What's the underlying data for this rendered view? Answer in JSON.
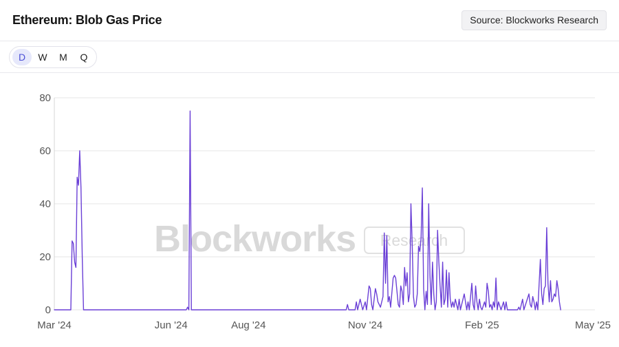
{
  "header": {
    "title": "Ethereum: Blob Gas Price",
    "source_label": "Source: Blockworks Research"
  },
  "range_selector": {
    "options": [
      "D",
      "W",
      "M",
      "Q"
    ],
    "active": "D"
  },
  "watermark": {
    "brand": "Blockworks",
    "sub": "Research"
  },
  "colors": {
    "line": "#6a3fd6",
    "grid": "#e6e6e6",
    "active_tab_bg": "#e6e8fb",
    "active_tab_text": "#4b4fd6"
  },
  "chart_data": {
    "type": "line",
    "title": "Ethereum: Blob Gas Price",
    "xlabel": "",
    "ylabel": "",
    "ylim": [
      0,
      80
    ],
    "yticks": [
      0,
      20,
      40,
      60,
      80
    ],
    "xlim": [
      "2024-03-01",
      "2025-05-01"
    ],
    "xticks": [
      {
        "date": "2024-03-01",
        "label": "Mar '24"
      },
      {
        "date": "2024-06-01",
        "label": "Jun '24"
      },
      {
        "date": "2024-08-01",
        "label": "Aug '24"
      },
      {
        "date": "2024-11-01",
        "label": "Nov '24"
      },
      {
        "date": "2025-02-01",
        "label": "Feb '25"
      },
      {
        "date": "2025-05-01",
        "label": "May '25"
      }
    ],
    "grid": true,
    "legend": "none",
    "series": [
      {
        "points": [
          [
            "2024-03-01",
            0
          ],
          [
            "2024-03-14",
            0
          ],
          [
            "2024-03-15",
            26
          ],
          [
            "2024-03-16",
            25
          ],
          [
            "2024-03-17",
            18
          ],
          [
            "2024-03-18",
            16
          ],
          [
            "2024-03-19",
            50
          ],
          [
            "2024-03-20",
            47
          ],
          [
            "2024-03-21",
            60
          ],
          [
            "2024-03-22",
            46
          ],
          [
            "2024-03-23",
            20
          ],
          [
            "2024-03-24",
            0
          ],
          [
            "2024-06-13",
            0
          ],
          [
            "2024-06-14",
            1
          ],
          [
            "2024-06-15",
            0
          ],
          [
            "2024-06-16",
            75
          ],
          [
            "2024-06-17",
            0
          ],
          [
            "2024-10-17",
            0
          ],
          [
            "2024-10-18",
            2
          ],
          [
            "2024-10-19",
            0
          ],
          [
            "2024-10-24",
            0
          ],
          [
            "2024-10-25",
            3
          ],
          [
            "2024-10-26",
            0
          ],
          [
            "2024-10-28",
            4
          ],
          [
            "2024-10-30",
            0
          ],
          [
            "2024-11-01",
            3
          ],
          [
            "2024-11-02",
            0
          ],
          [
            "2024-11-04",
            9
          ],
          [
            "2024-11-05",
            8
          ],
          [
            "2024-11-06",
            2
          ],
          [
            "2024-11-07",
            0
          ],
          [
            "2024-11-09",
            8
          ],
          [
            "2024-11-10",
            6
          ],
          [
            "2024-11-11",
            3
          ],
          [
            "2024-11-13",
            1
          ],
          [
            "2024-11-15",
            5
          ],
          [
            "2024-11-16",
            29
          ],
          [
            "2024-11-17",
            10
          ],
          [
            "2024-11-18",
            28
          ],
          [
            "2024-11-19",
            3
          ],
          [
            "2024-11-20",
            5
          ],
          [
            "2024-11-21",
            1
          ],
          [
            "2024-11-23",
            12
          ],
          [
            "2024-11-24",
            13
          ],
          [
            "2024-11-25",
            12
          ],
          [
            "2024-11-26",
            7
          ],
          [
            "2024-11-27",
            2
          ],
          [
            "2024-11-28",
            1
          ],
          [
            "2024-11-29",
            9
          ],
          [
            "2024-11-30",
            7
          ],
          [
            "2024-12-01",
            2
          ],
          [
            "2024-12-02",
            16
          ],
          [
            "2024-12-03",
            9
          ],
          [
            "2024-12-04",
            14
          ],
          [
            "2024-12-05",
            3
          ],
          [
            "2024-12-06",
            6
          ],
          [
            "2024-12-07",
            40
          ],
          [
            "2024-12-08",
            25
          ],
          [
            "2024-12-09",
            5
          ],
          [
            "2024-12-10",
            1
          ],
          [
            "2024-12-11",
            2
          ],
          [
            "2024-12-12",
            6
          ],
          [
            "2024-12-13",
            24
          ],
          [
            "2024-12-14",
            22
          ],
          [
            "2024-12-15",
            27
          ],
          [
            "2024-12-16",
            46
          ],
          [
            "2024-12-17",
            8
          ],
          [
            "2024-12-18",
            0
          ],
          [
            "2024-12-19",
            7
          ],
          [
            "2024-12-20",
            2
          ],
          [
            "2024-12-21",
            40
          ],
          [
            "2024-12-22",
            13
          ],
          [
            "2024-12-23",
            2
          ],
          [
            "2024-12-24",
            18
          ],
          [
            "2024-12-25",
            6
          ],
          [
            "2024-12-26",
            0
          ],
          [
            "2024-12-27",
            3
          ],
          [
            "2024-12-28",
            30
          ],
          [
            "2024-12-29",
            18
          ],
          [
            "2024-12-30",
            9
          ],
          [
            "2024-12-31",
            1
          ],
          [
            "2025-01-01",
            18
          ],
          [
            "2025-01-02",
            2
          ],
          [
            "2025-01-03",
            4
          ],
          [
            "2025-01-04",
            15
          ],
          [
            "2025-01-05",
            1
          ],
          [
            "2025-01-06",
            14
          ],
          [
            "2025-01-07",
            4
          ],
          [
            "2025-01-08",
            1
          ],
          [
            "2025-01-09",
            3
          ],
          [
            "2025-01-10",
            1
          ],
          [
            "2025-01-11",
            4
          ],
          [
            "2025-01-12",
            2
          ],
          [
            "2025-01-13",
            0
          ],
          [
            "2025-01-14",
            4
          ],
          [
            "2025-01-15",
            0
          ],
          [
            "2025-01-18",
            6
          ],
          [
            "2025-01-19",
            3
          ],
          [
            "2025-01-20",
            0
          ],
          [
            "2025-01-21",
            3
          ],
          [
            "2025-01-22",
            0
          ],
          [
            "2025-01-24",
            10
          ],
          [
            "2025-01-25",
            2
          ],
          [
            "2025-01-26",
            0
          ],
          [
            "2025-01-27",
            9
          ],
          [
            "2025-01-28",
            3
          ],
          [
            "2025-01-29",
            0
          ],
          [
            "2025-01-30",
            4
          ],
          [
            "2025-01-31",
            1
          ],
          [
            "2025-02-01",
            0
          ],
          [
            "2025-02-03",
            3
          ],
          [
            "2025-02-04",
            1
          ],
          [
            "2025-02-05",
            10
          ],
          [
            "2025-02-06",
            7
          ],
          [
            "2025-02-07",
            1
          ],
          [
            "2025-02-08",
            2
          ],
          [
            "2025-02-09",
            0
          ],
          [
            "2025-02-10",
            3
          ],
          [
            "2025-02-11",
            1
          ],
          [
            "2025-02-12",
            12
          ],
          [
            "2025-02-13",
            0
          ],
          [
            "2025-02-14",
            3
          ],
          [
            "2025-02-16",
            0
          ],
          [
            "2025-02-18",
            3
          ],
          [
            "2025-02-19",
            0
          ],
          [
            "2025-02-20",
            3
          ],
          [
            "2025-02-21",
            0
          ],
          [
            "2025-03-01",
            0
          ],
          [
            "2025-03-02",
            1
          ],
          [
            "2025-03-03",
            0
          ],
          [
            "2025-03-05",
            4
          ],
          [
            "2025-03-06",
            0
          ],
          [
            "2025-03-10",
            6
          ],
          [
            "2025-03-11",
            2
          ],
          [
            "2025-03-12",
            1
          ],
          [
            "2025-03-13",
            5
          ],
          [
            "2025-03-14",
            3
          ],
          [
            "2025-03-15",
            0
          ],
          [
            "2025-03-16",
            3
          ],
          [
            "2025-03-17",
            0
          ],
          [
            "2025-03-19",
            19
          ],
          [
            "2025-03-20",
            6
          ],
          [
            "2025-03-21",
            2
          ],
          [
            "2025-03-22",
            8
          ],
          [
            "2025-03-23",
            9
          ],
          [
            "2025-03-24",
            31
          ],
          [
            "2025-03-25",
            10
          ],
          [
            "2025-03-26",
            3
          ],
          [
            "2025-03-27",
            11
          ],
          [
            "2025-03-28",
            3
          ],
          [
            "2025-03-29",
            4
          ],
          [
            "2025-03-30",
            6
          ],
          [
            "2025-03-31",
            5
          ],
          [
            "2025-04-01",
            11
          ],
          [
            "2025-04-02",
            8
          ],
          [
            "2025-04-03",
            3
          ],
          [
            "2025-04-04",
            0
          ]
        ]
      }
    ]
  }
}
